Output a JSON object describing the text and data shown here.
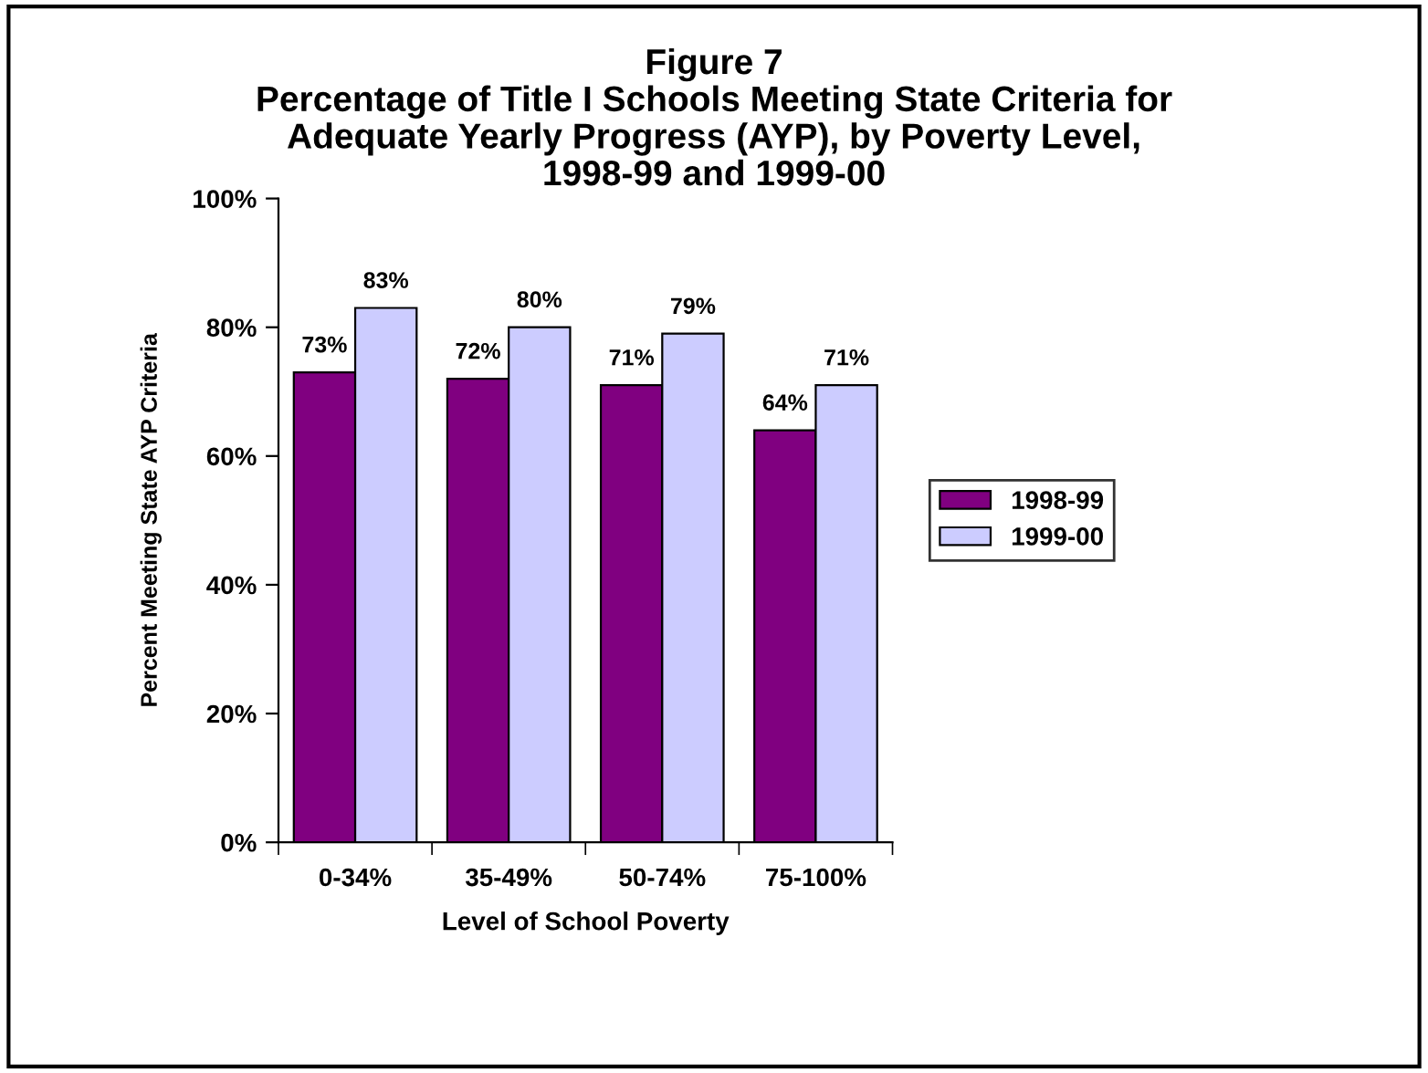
{
  "chart_data": {
    "type": "bar",
    "title": "Figure 7\nPercentage of Title I Schools Meeting State Criteria for\nAdequate Yearly Progress (AYP), by Poverty Level,\n1998-99 and 1999-00",
    "xlabel": "Level of School Poverty",
    "ylabel": "Percent Meeting State AYP Criteria",
    "categories": [
      "0-34%",
      "35-49%",
      "50-74%",
      "75-100%"
    ],
    "series": [
      {
        "name": "1998-99",
        "color": "#800080",
        "values": [
          73,
          72,
          71,
          64
        ],
        "value_labels": [
          "73%",
          "72%",
          "71%",
          "64%"
        ]
      },
      {
        "name": "1999-00",
        "color": "#ccccff",
        "values": [
          83,
          80,
          79,
          71
        ],
        "value_labels": [
          "83%",
          "80%",
          "79%",
          "71%"
        ]
      }
    ],
    "ylim": [
      0,
      100
    ],
    "yticks": [
      {
        "value": 0,
        "label": "0%"
      },
      {
        "value": 20,
        "label": "20%"
      },
      {
        "value": 40,
        "label": "40%"
      },
      {
        "value": 60,
        "label": "60%"
      },
      {
        "value": 80,
        "label": "80%"
      },
      {
        "value": 100,
        "label": "100%"
      }
    ],
    "grid": false,
    "legend": "right"
  }
}
